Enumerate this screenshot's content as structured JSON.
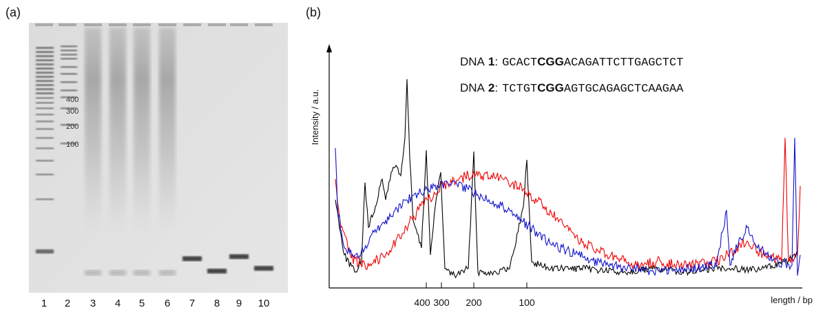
{
  "panel_a": {
    "label": "(a)",
    "ladder_labels": [
      "400",
      "300",
      "200",
      "100"
    ],
    "lane_labels": [
      "1",
      "2",
      "3",
      "4",
      "5",
      "6",
      "7",
      "8",
      "9",
      "10"
    ]
  },
  "panel_b": {
    "label": "(b)",
    "y_axis_label": "Intensity / a.u.",
    "x_axis_label": "length / bp",
    "x_ticks": [
      "400",
      "300",
      "200",
      "100"
    ],
    "sequences": [
      {
        "name": "DNA",
        "number": "1",
        "separator": ":",
        "before": "GCACT",
        "motif": "CGG",
        "after": "ACAGATTCTTGAGCTCT"
      },
      {
        "name": "DNA",
        "number": "2",
        "separator": ":",
        "before": "TCTGT",
        "motif": "CGG",
        "after": "AGTGCAGAGCTCAAGAA"
      }
    ]
  }
}
